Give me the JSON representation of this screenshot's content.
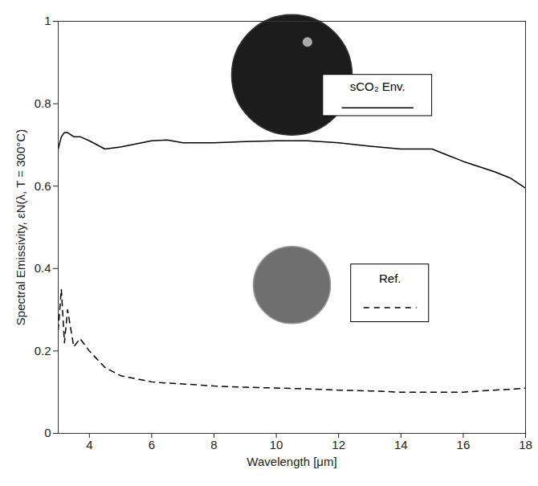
{
  "chart_data": {
    "type": "line",
    "x_label": "Wavelength [μm]",
    "y_label": "Spectral Emissivity, εN(λ, T = 300°C)",
    "x": [
      3.0,
      3.1,
      3.2,
      3.3,
      3.5,
      3.7,
      4,
      4.5,
      5,
      6,
      6.5,
      7,
      8,
      9,
      10,
      11,
      12,
      13,
      14,
      15,
      15.5,
      16,
      17,
      17.5,
      18
    ],
    "series": [
      {
        "name": "sCO₂ Env.",
        "color": "#000000",
        "line_style": "solid",
        "values": [
          0.69,
          0.72,
          0.73,
          0.73,
          0.72,
          0.72,
          0.71,
          0.69,
          0.695,
          0.71,
          0.712,
          0.705,
          0.705,
          0.708,
          0.71,
          0.71,
          0.705,
          0.697,
          0.69,
          0.69,
          0.675,
          0.66,
          0.635,
          0.62,
          0.595
        ]
      },
      {
        "name": "Ref.",
        "color": "#000000",
        "line_style": "dashed",
        "values": [
          0.25,
          0.35,
          0.22,
          0.3,
          0.21,
          0.23,
          0.2,
          0.16,
          0.14,
          0.125,
          0.122,
          0.12,
          0.115,
          0.112,
          0.11,
          0.108,
          0.105,
          0.103,
          0.1,
          0.1,
          0.1,
          0.1,
          0.105,
          0.107,
          0.11
        ]
      }
    ],
    "xlim": [
      3,
      18
    ],
    "xticks": [
      4,
      6,
      8,
      10,
      12,
      14,
      16,
      18
    ],
    "ylim": [
      0,
      1
    ],
    "yticks": [
      0,
      0.2,
      0.4,
      0.6,
      0.8,
      1
    ],
    "grid": false,
    "legend": "inside"
  }
}
